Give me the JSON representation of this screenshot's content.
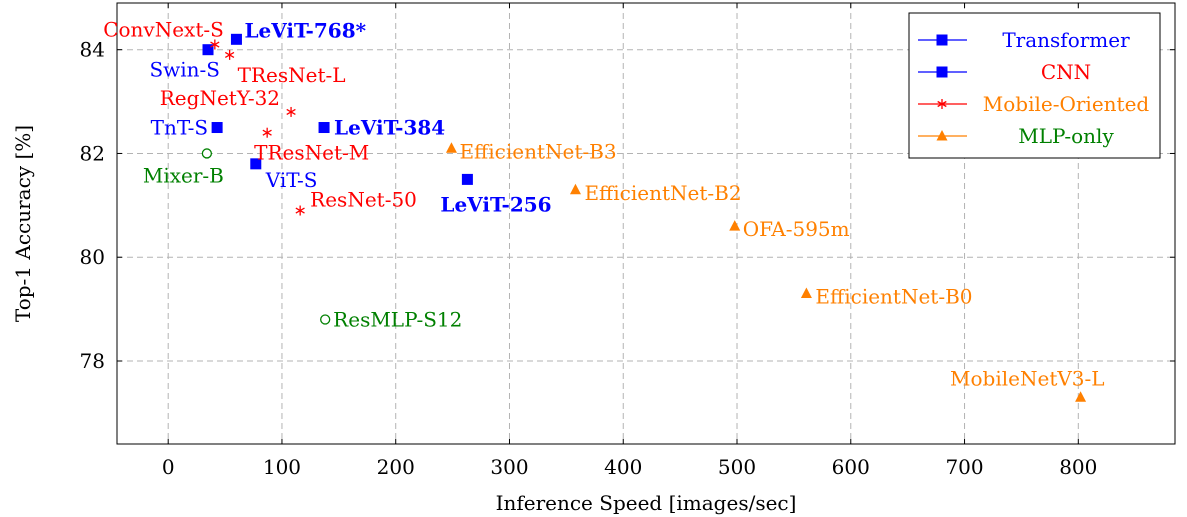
{
  "chart_data": {
    "type": "scatter",
    "xlabel": "Inference Speed [images/sec]",
    "ylabel": "Top-1 Accuracy [%]",
    "xlim": [
      -45,
      885
    ],
    "ylim": [
      76.4,
      84.9
    ],
    "x_ticks": [
      0,
      100,
      200,
      300,
      400,
      500,
      600,
      700,
      800
    ],
    "y_ticks": [
      78,
      80,
      82,
      84
    ],
    "grid": true,
    "grid_style": "dashed",
    "legend_position": "top-right",
    "legend": [
      {
        "label": "Transformer",
        "color": "#0000ff",
        "text_color": "#0000ff",
        "marker": "square"
      },
      {
        "label": "CNN",
        "color": "#0000ff",
        "text_color": "#ff0000",
        "marker": "square"
      },
      {
        "label": "Mobile-Oriented",
        "color": "#ff0000",
        "text_color": "#ff8000",
        "marker": "asterisk"
      },
      {
        "label": "MLP-only",
        "color": "#ff8000",
        "text_color": "#008000",
        "marker": "triangle"
      }
    ],
    "series": [
      {
        "marker": "square",
        "color": "#0000ff",
        "points": [
          {
            "label": "LeViT-768*",
            "x": 60,
            "y": 84.2,
            "label_color": "#0000ff",
            "bold": true
          },
          {
            "label": "Swin-S",
            "x": 35,
            "y": 84.0,
            "label_color": "#0000ff",
            "bold": false
          },
          {
            "label": "TnT-S",
            "x": 43,
            "y": 82.5,
            "label_color": "#0000ff",
            "bold": false
          },
          {
            "label": "LeViT-384",
            "x": 137,
            "y": 82.5,
            "label_color": "#0000ff",
            "bold": true
          },
          {
            "label": "ViT-S",
            "x": 77,
            "y": 81.8,
            "label_color": "#0000ff",
            "bold": false
          },
          {
            "label": "LeViT-256",
            "x": 263,
            "y": 81.5,
            "label_color": "#0000ff",
            "bold": true
          }
        ]
      },
      {
        "marker": "asterisk",
        "color": "#ff0000",
        "points": [
          {
            "label": "ConvNext-S",
            "x": 41,
            "y": 84.1,
            "label_color": "#ff0000",
            "bold": false
          },
          {
            "label": "TResNet-L",
            "x": 54,
            "y": 83.9,
            "label_color": "#ff0000",
            "bold": false
          },
          {
            "label": "RegNetY-32",
            "x": 108,
            "y": 82.8,
            "label_color": "#ff0000",
            "bold": false
          },
          {
            "label": "TResNet-M",
            "x": 87,
            "y": 82.4,
            "label_color": "#ff0000",
            "bold": false
          },
          {
            "label": "ResNet-50",
            "x": 116,
            "y": 80.9,
            "label_color": "#ff0000",
            "bold": false
          }
        ]
      },
      {
        "marker": "triangle",
        "color": "#ff8000",
        "points": [
          {
            "label": "EfficientNet-B3",
            "x": 249,
            "y": 82.1,
            "label_color": "#ff8000",
            "bold": false
          },
          {
            "label": "EfficientNet-B2",
            "x": 358,
            "y": 81.3,
            "label_color": "#ff8000",
            "bold": false
          },
          {
            "label": "OFA-595m",
            "x": 498,
            "y": 80.6,
            "label_color": "#ff8000",
            "bold": false
          },
          {
            "label": "EfficientNet-B0",
            "x": 561,
            "y": 79.3,
            "label_color": "#ff8000",
            "bold": false
          },
          {
            "label": "MobileNetV3-L",
            "x": 802,
            "y": 77.3,
            "label_color": "#ff8000",
            "bold": false
          }
        ]
      },
      {
        "marker": "circle",
        "color": "#008000",
        "points": [
          {
            "label": "Mixer-B",
            "x": 34,
            "y": 82.0,
            "label_color": "#008000",
            "bold": false
          },
          {
            "label": "ResMLP-S12",
            "x": 138,
            "y": 78.8,
            "label_color": "#008000",
            "bold": false
          }
        ]
      }
    ]
  }
}
